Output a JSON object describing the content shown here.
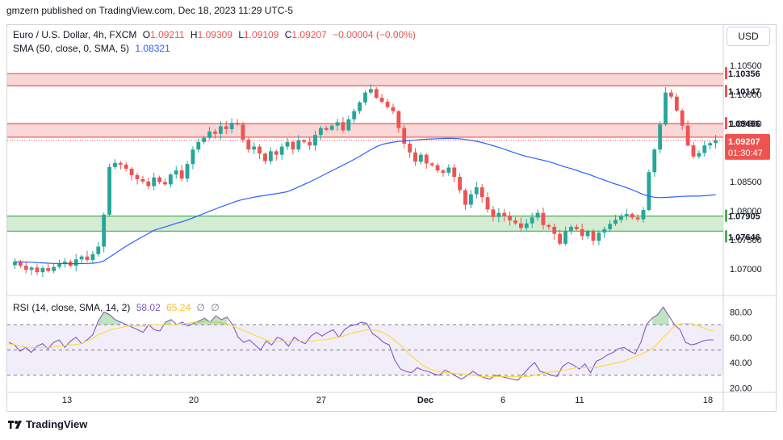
{
  "header": {
    "published": "gmzern published on TradingView.com, Dec 18, 2023 11:29 UTC-5"
  },
  "legend": {
    "symbol": "Euro / U.S. Dollar, 4h, FXCM",
    "o_label": "O",
    "o_value": "1.09211",
    "h_label": "H",
    "h_value": "1.09309",
    "l_label": "L",
    "l_value": "1.09109",
    "c_label": "C",
    "c_value": "1.09207",
    "change": "−0.00004 (−0.00%)",
    "sma_label": "SMA (50, close, 0, SMA, 5)",
    "sma_value": "1.08321",
    "rsi_label": "RSI (14, close, SMA, 14, 2)",
    "rsi_value": "58.02",
    "rsi_sma_value": "65.24",
    "rsi_extra1": "∅",
    "rsi_extra2": "∅"
  },
  "currency_button": "USD",
  "footer": {
    "brand": "TradingView"
  },
  "colors": {
    "up": "#26a69a",
    "down": "#ef5350",
    "sma": "#2962ff",
    "rsi": "#7e57c2",
    "rsi_ma": "#fdd835",
    "resistance_zone": "#f8d7d7",
    "support_zone": "#d4ecd4"
  },
  "chart_data": {
    "type": "candlestick",
    "price_axis": {
      "ticks": [
        "1.10500",
        "1.10000",
        "1.09500",
        "1.09000",
        "1.08500",
        "1.08000",
        "1.07500",
        "1.07000"
      ],
      "range": [
        1.0665,
        1.1065
      ]
    },
    "time_axis": {
      "labels": [
        "13",
        "20",
        "27",
        "Dec",
        "6",
        "11",
        "18"
      ]
    },
    "zones": [
      {
        "kind": "resistance",
        "top": 1.10356,
        "bottom": 1.10147,
        "top_label": "1.10356",
        "bottom_label": "1.10147"
      },
      {
        "kind": "resistance",
        "top": 1.09496,
        "bottom": 1.09262,
        "top_label": "1.09496",
        "bottom_label": "1.09262"
      },
      {
        "kind": "support",
        "top": 1.07905,
        "bottom": 1.07646,
        "top_label": "1.07905",
        "bottom_label": "1.07646"
      }
    ],
    "last_price": {
      "value": 1.09207,
      "label": "1.09207",
      "countdown": "01:30:47"
    },
    "close_series": [
      1.0712,
      1.0705,
      1.0698,
      1.0702,
      1.0694,
      1.0701,
      1.0696,
      1.0703,
      1.0708,
      1.0712,
      1.0705,
      1.0716,
      1.0721,
      1.0715,
      1.0725,
      1.0738,
      1.0793,
      1.0875,
      1.0882,
      1.0879,
      1.0872,
      1.0861,
      1.0854,
      1.085,
      1.0842,
      1.0857,
      1.0849,
      1.0845,
      1.0862,
      1.0869,
      1.0855,
      1.088,
      1.0905,
      1.0918,
      1.0925,
      1.0936,
      1.0932,
      1.0945,
      1.094,
      1.0951,
      1.0948,
      1.0922,
      1.0905,
      1.091,
      1.0898,
      1.0885,
      1.0902,
      1.0896,
      1.091,
      1.0918,
      1.0905,
      1.0921,
      1.0918,
      1.0912,
      1.093,
      1.0942,
      1.0939,
      1.0946,
      1.0952,
      1.0938,
      1.0957,
      1.0971,
      1.0986,
      1.1003,
      1.1009,
      1.0994,
      1.0987,
      1.0978,
      1.0971,
      1.0942,
      1.0915,
      1.09,
      1.0884,
      1.0896,
      1.0881,
      1.0878,
      1.0869,
      1.0865,
      1.0874,
      1.0858,
      1.0835,
      1.081,
      1.0828,
      1.084,
      1.0823,
      1.0802,
      1.0789,
      1.0796,
      1.0791,
      1.0783,
      1.0778,
      1.077,
      1.0778,
      1.0788,
      1.0796,
      1.0775,
      1.0772,
      1.076,
      1.0743,
      1.0765,
      1.0772,
      1.0768,
      1.0756,
      1.0765,
      1.0748,
      1.0762,
      1.0768,
      1.0777,
      1.0784,
      1.079,
      1.0794,
      1.0788,
      1.0785,
      1.0801,
      1.0866,
      1.0905,
      1.0948,
      1.1003,
      1.0996,
      1.0972,
      1.0946,
      1.0912,
      1.0893,
      1.0899,
      1.0912,
      1.0916,
      1.0921
    ],
    "sma_range": {
      "start": 1.0712,
      "end": 1.08321,
      "peak": 1.0945
    },
    "rsi": {
      "axis_ticks": [
        "80.00",
        "60.00",
        "40.00",
        "20.00"
      ],
      "range": [
        19,
        88
      ],
      "band": [
        30,
        70
      ],
      "midline": 50,
      "values": [
        56,
        54,
        49,
        52,
        48,
        53,
        55,
        51,
        56,
        58,
        52,
        57,
        60,
        55,
        58,
        62,
        73,
        80,
        78,
        74,
        72,
        70,
        68,
        66,
        64,
        70,
        66,
        65,
        72,
        74,
        70,
        72,
        69,
        71,
        73,
        75,
        72,
        77,
        74,
        76,
        70,
        60,
        56,
        58,
        54,
        50,
        57,
        54,
        60,
        58,
        53,
        60,
        57,
        55,
        61,
        64,
        61,
        64,
        66,
        60,
        66,
        69,
        70,
        72,
        71,
        63,
        60,
        56,
        54,
        42,
        35,
        33,
        32,
        36,
        34,
        33,
        31,
        30,
        34,
        32,
        29,
        27,
        30,
        33,
        30,
        28,
        27,
        30,
        29,
        28,
        27,
        26,
        31,
        36,
        40,
        33,
        32,
        30,
        29,
        37,
        40,
        38,
        35,
        39,
        32,
        41,
        43,
        46,
        48,
        51,
        52,
        49,
        47,
        56,
        70,
        75,
        78,
        84,
        77,
        70,
        66,
        56,
        54,
        55,
        57,
        58,
        58
      ],
      "ma_values": [
        55,
        54,
        53,
        52,
        52,
        52,
        52,
        52,
        53,
        53,
        54,
        54,
        55,
        57,
        59,
        62,
        64,
        66,
        67,
        68,
        69,
        69,
        69,
        69,
        70,
        70,
        70,
        70,
        70,
        71,
        71,
        72,
        72,
        73,
        72,
        72,
        71,
        70,
        68,
        66,
        64,
        62,
        60,
        58,
        57,
        57,
        57,
        57,
        57,
        57,
        57,
        57,
        58,
        58,
        59,
        60,
        61,
        63,
        64,
        65,
        66,
        66,
        65,
        63,
        60,
        56,
        52,
        47,
        43,
        39,
        36,
        34,
        33,
        32,
        32,
        31,
        31,
        30,
        30,
        29,
        29,
        29,
        29,
        29,
        29,
        29,
        29,
        29,
        30,
        31,
        32,
        33,
        33,
        34,
        35,
        36,
        36,
        36,
        36,
        37,
        38,
        39,
        40,
        41,
        43,
        45,
        47,
        49,
        52,
        57,
        62,
        67,
        70,
        71,
        71,
        70,
        68,
        66,
        65
      ]
    }
  }
}
